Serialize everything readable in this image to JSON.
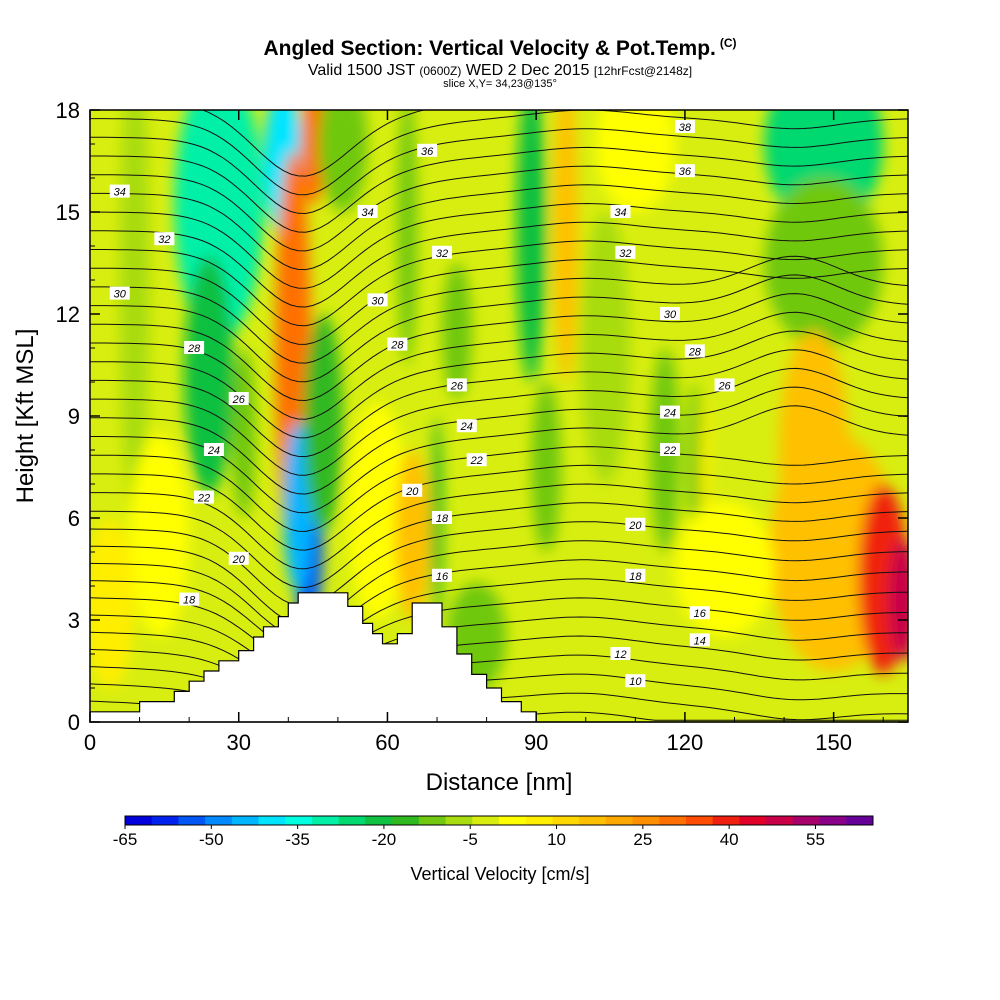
{
  "title": {
    "main": "Angled Section: Vertical Velocity & Pot.Temp.",
    "copyright": "(C)",
    "valid_prefix": "Valid 1500 JST",
    "valid_utc": "(0600Z)",
    "valid_date": "WED 2 Dec 2015",
    "forecast": "[12hrFcst@2148z]",
    "slice": "slice X,Y= 34,23@135°"
  },
  "chart_data": {
    "type": "heatmap",
    "xlabel": "Distance [nm]",
    "ylabel": "Height [Kft MSL]",
    "xlim": [
      0,
      165
    ],
    "ylim": [
      0,
      18
    ],
    "xticks": [
      0,
      30,
      60,
      90,
      120,
      150
    ],
    "yticks": [
      0,
      3,
      6,
      9,
      12,
      15,
      18
    ],
    "colorbar": {
      "label": "Vertical Velocity [cm/s]",
      "tick_labels": [
        "-65",
        "-50",
        "-35",
        "-20",
        "-5",
        "10",
        "25",
        "40",
        "55"
      ],
      "tick_values": [
        -65,
        -50,
        -35,
        -20,
        -5,
        10,
        25,
        40,
        55
      ],
      "min": -65,
      "max": 65,
      "step": 5,
      "colors": [
        "#0000dd",
        "#0022ee",
        "#0055f5",
        "#0088ff",
        "#00b5ff",
        "#00e5ff",
        "#00ffe0",
        "#00f0a8",
        "#00d870",
        "#10c040",
        "#30b820",
        "#70c810",
        "#a8dc10",
        "#d8ee10",
        "#ffff00",
        "#ffee00",
        "#ffd800",
        "#ffc000",
        "#ffa800",
        "#ff9000",
        "#ff7000",
        "#ff4c00",
        "#f02010",
        "#e00028",
        "#c80048",
        "#a8006a",
        "#880088",
        "#660099"
      ]
    },
    "terrain_top": [
      [
        0,
        0.3
      ],
      [
        10,
        0.3
      ],
      [
        10,
        0.6
      ],
      [
        16,
        0.6
      ],
      [
        16,
        0.6
      ],
      [
        17,
        0.6
      ],
      [
        17,
        0.9
      ],
      [
        20,
        0.9
      ],
      [
        20,
        1.2
      ],
      [
        23,
        1.2
      ],
      [
        23,
        1.5
      ],
      [
        26,
        1.5
      ],
      [
        26,
        1.8
      ],
      [
        30,
        1.8
      ],
      [
        30,
        2.1
      ],
      [
        33,
        2.1
      ],
      [
        33,
        2.5
      ],
      [
        35,
        2.5
      ],
      [
        35,
        2.8
      ],
      [
        38,
        2.8
      ],
      [
        38,
        3.1
      ],
      [
        40,
        3.1
      ],
      [
        40,
        3.5
      ],
      [
        42,
        3.5
      ],
      [
        42,
        3.8
      ],
      [
        52,
        3.8
      ],
      [
        52,
        3.4
      ],
      [
        55,
        3.4
      ],
      [
        55,
        2.9
      ],
      [
        57,
        2.9
      ],
      [
        57,
        2.6
      ],
      [
        59,
        2.6
      ],
      [
        59,
        2.3
      ],
      [
        62,
        2.3
      ],
      [
        62,
        2.6
      ],
      [
        65,
        2.6
      ],
      [
        65,
        3.5
      ],
      [
        71,
        3.5
      ],
      [
        71,
        2.8
      ],
      [
        74,
        2.8
      ],
      [
        74,
        2.0
      ],
      [
        77,
        2.0
      ],
      [
        77,
        1.4
      ],
      [
        80,
        1.4
      ],
      [
        80,
        1.0
      ],
      [
        83,
        1.0
      ],
      [
        83,
        0.6
      ],
      [
        87,
        0.6
      ],
      [
        87,
        0.3
      ],
      [
        90,
        0.3
      ],
      [
        90,
        0.0
      ],
      [
        165,
        0.0
      ]
    ],
    "blobs": [
      {
        "x": 9,
        "y": 13.0,
        "rx": 3,
        "ry": 7,
        "v": -2
      },
      {
        "x": 26,
        "y": 15.2,
        "rx": 9,
        "ry": 4,
        "v": -26
      },
      {
        "x": 24,
        "y": 10.2,
        "rx": 5,
        "ry": 3.5,
        "v": -19
      },
      {
        "x": 31,
        "y": 8.5,
        "rx": 2.5,
        "ry": 2.5,
        "v": -8
      },
      {
        "x": 39,
        "y": 16.5,
        "rx": 4,
        "ry": 2.2,
        "v": -40
      },
      {
        "x": 41,
        "y": 10.8,
        "rx": 3.6,
        "ry": 6,
        "v": 38
      },
      {
        "x": 45,
        "y": 17.0,
        "rx": 2.5,
        "ry": 1.8,
        "v": 35
      },
      {
        "x": 44,
        "y": 5.2,
        "rx": 3,
        "ry": 2.5,
        "v": -52
      },
      {
        "x": 42,
        "y": 6.3,
        "rx": 3,
        "ry": 2.5,
        "v": -42
      },
      {
        "x": 47,
        "y": 8.8,
        "rx": 4,
        "ry": 3.2,
        "v": -15
      },
      {
        "x": 51,
        "y": 17.0,
        "rx": 5,
        "ry": 2,
        "v": -8
      },
      {
        "x": 58,
        "y": 6.2,
        "rx": 6,
        "ry": 3.2,
        "v": 8
      },
      {
        "x": 64,
        "y": 14.5,
        "rx": 2,
        "ry": 4,
        "v": -10
      },
      {
        "x": 65,
        "y": 5.5,
        "rx": 3.5,
        "ry": 2.5,
        "v": 22
      },
      {
        "x": 70,
        "y": 6.0,
        "rx": 1.2,
        "ry": 3,
        "v": -14
      },
      {
        "x": 74,
        "y": 11.5,
        "rx": 3,
        "ry": 2,
        "v": -6
      },
      {
        "x": 78,
        "y": 2.5,
        "rx": 6,
        "ry": 1.6,
        "v": -10
      },
      {
        "x": 89,
        "y": 14.5,
        "rx": 3,
        "ry": 4.5,
        "v": -16
      },
      {
        "x": 92,
        "y": 7.5,
        "rx": 3,
        "ry": 2.5,
        "v": -10
      },
      {
        "x": 96,
        "y": 14.5,
        "rx": 2.5,
        "ry": 4.5,
        "v": 22
      },
      {
        "x": 104,
        "y": 11.0,
        "rx": 5,
        "ry": 4,
        "v": -4
      },
      {
        "x": 110,
        "y": 17.0,
        "rx": 8,
        "ry": 2,
        "v": 7
      },
      {
        "x": 116,
        "y": 8.0,
        "rx": 3,
        "ry": 3,
        "v": -6
      },
      {
        "x": 122,
        "y": 7.5,
        "rx": 1.5,
        "ry": 2.5,
        "v": -10
      },
      {
        "x": 124,
        "y": 7.5,
        "rx": 1,
        "ry": 2,
        "v": 14
      },
      {
        "x": 148,
        "y": 17.0,
        "rx": 12,
        "ry": 2.5,
        "v": -22
      },
      {
        "x": 148,
        "y": 13.5,
        "rx": 12,
        "ry": 2.5,
        "v": -6
      },
      {
        "x": 143,
        "y": 8.5,
        "rx": 2.5,
        "ry": 2,
        "v": 40
      },
      {
        "x": 146,
        "y": 8.0,
        "rx": 7,
        "ry": 3.5,
        "v": 24
      },
      {
        "x": 150,
        "y": 5.0,
        "rx": 13,
        "ry": 3.5,
        "v": 20
      },
      {
        "x": 160,
        "y": 4.2,
        "rx": 5,
        "ry": 2.8,
        "v": 45
      },
      {
        "x": 164,
        "y": 3.6,
        "rx": 3,
        "ry": 1.8,
        "v": 58
      },
      {
        "x": 128,
        "y": 4.5,
        "rx": 10,
        "ry": 2,
        "v": 6
      },
      {
        "x": 14,
        "y": 5.5,
        "rx": 6,
        "ry": 3,
        "v": 9
      },
      {
        "x": 4,
        "y": 3.5,
        "rx": 5,
        "ry": 2.5,
        "v": 10
      }
    ],
    "contour_labels": [
      {
        "x": 6,
        "y": 15.6,
        "text": "34"
      },
      {
        "x": 15,
        "y": 14.2,
        "text": "32"
      },
      {
        "x": 6,
        "y": 12.6,
        "text": "30"
      },
      {
        "x": 21,
        "y": 11.0,
        "text": "28"
      },
      {
        "x": 30,
        "y": 9.5,
        "text": "26"
      },
      {
        "x": 25,
        "y": 8.0,
        "text": "24"
      },
      {
        "x": 23,
        "y": 6.6,
        "text": "22"
      },
      {
        "x": 30,
        "y": 4.8,
        "text": "20"
      },
      {
        "x": 20,
        "y": 3.6,
        "text": "18"
      },
      {
        "x": 68,
        "y": 16.8,
        "text": "36"
      },
      {
        "x": 56,
        "y": 15.0,
        "text": "34"
      },
      {
        "x": 71,
        "y": 13.8,
        "text": "32"
      },
      {
        "x": 58,
        "y": 12.4,
        "text": "30"
      },
      {
        "x": 62,
        "y": 11.1,
        "text": "28"
      },
      {
        "x": 74,
        "y": 9.9,
        "text": "26"
      },
      {
        "x": 76,
        "y": 8.7,
        "text": "24"
      },
      {
        "x": 78,
        "y": 7.7,
        "text": "22"
      },
      {
        "x": 65,
        "y": 6.8,
        "text": "20"
      },
      {
        "x": 71,
        "y": 6.0,
        "text": "18"
      },
      {
        "x": 71,
        "y": 4.3,
        "text": "16"
      },
      {
        "x": 120,
        "y": 17.5,
        "text": "38"
      },
      {
        "x": 120,
        "y": 16.2,
        "text": "36"
      },
      {
        "x": 107,
        "y": 15.0,
        "text": "34"
      },
      {
        "x": 108,
        "y": 13.8,
        "text": "32"
      },
      {
        "x": 117,
        "y": 12.0,
        "text": "30"
      },
      {
        "x": 122,
        "y": 10.9,
        "text": "28"
      },
      {
        "x": 128,
        "y": 9.9,
        "text": "26"
      },
      {
        "x": 117,
        "y": 9.1,
        "text": "24"
      },
      {
        "x": 117,
        "y": 8.0,
        "text": "22"
      },
      {
        "x": 110,
        "y": 5.8,
        "text": "20"
      },
      {
        "x": 110,
        "y": 4.3,
        "text": "18"
      },
      {
        "x": 123,
        "y": 3.2,
        "text": "16"
      },
      {
        "x": 123,
        "y": 2.4,
        "text": "14"
      },
      {
        "x": 107,
        "y": 2.0,
        "text": "12"
      },
      {
        "x": 110,
        "y": 1.2,
        "text": "10"
      }
    ]
  }
}
